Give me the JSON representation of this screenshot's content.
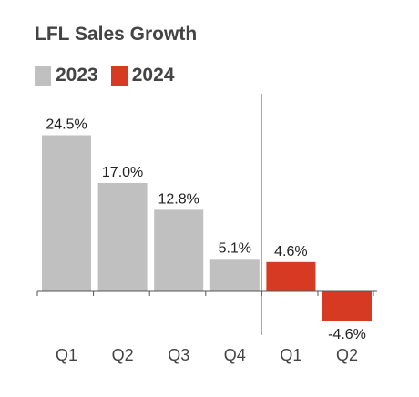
{
  "chart_data": {
    "type": "bar",
    "title": "LFL Sales Growth",
    "categories": [
      "Q1",
      "Q2",
      "Q3",
      "Q4",
      "Q1",
      "Q2"
    ],
    "values": [
      24.5,
      17.0,
      12.8,
      5.1,
      4.6,
      -4.6
    ],
    "value_labels": [
      "24.5%",
      "17.0%",
      "12.8%",
      "5.1%",
      "4.6%",
      "-4.6%"
    ],
    "year_of_bar": [
      "2023",
      "2023",
      "2023",
      "2023",
      "2024",
      "2024"
    ],
    "series": [
      {
        "name": "2023",
        "color": "#c0c0c0"
      },
      {
        "name": "2024",
        "color": "#d63a22"
      }
    ],
    "xlabel": "",
    "ylabel": "",
    "ylim": [
      -6,
      26
    ],
    "grid": false,
    "legend_position": "top-left",
    "divider_between_years": true
  }
}
